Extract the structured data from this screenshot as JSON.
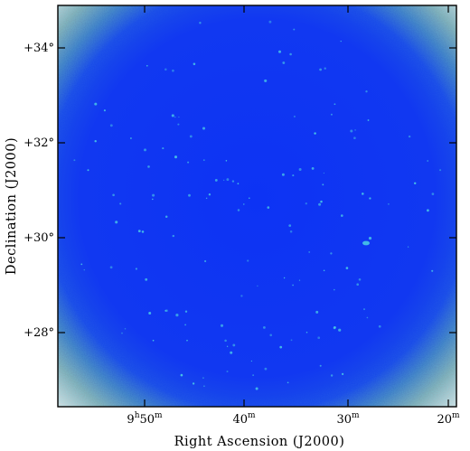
{
  "figure": {
    "x_axis": {
      "title": "Right Ascension (J2000)",
      "ticks": [
        {
          "main": "9",
          "sup1": "h",
          "mid": "50",
          "sup2": "m"
        },
        {
          "main": "40",
          "sup1": "",
          "mid": "",
          "sup2": "m"
        },
        {
          "main": "30",
          "sup1": "",
          "mid": "",
          "sup2": "m"
        },
        {
          "main": "20",
          "sup1": "",
          "mid": "",
          "sup2": "m"
        }
      ]
    },
    "y_axis": {
      "title": "Declination (J2000)",
      "ticks": [
        "+34°",
        "+32°",
        "+30°",
        "+28°"
      ]
    },
    "colors": {
      "field": "#1239f0",
      "field_center": "#0f34f2",
      "edge_noise": "#6fb0c8",
      "corner_noise": "#c8d2d8",
      "sources": "#48c8e6",
      "frame": "#000000"
    }
  }
}
